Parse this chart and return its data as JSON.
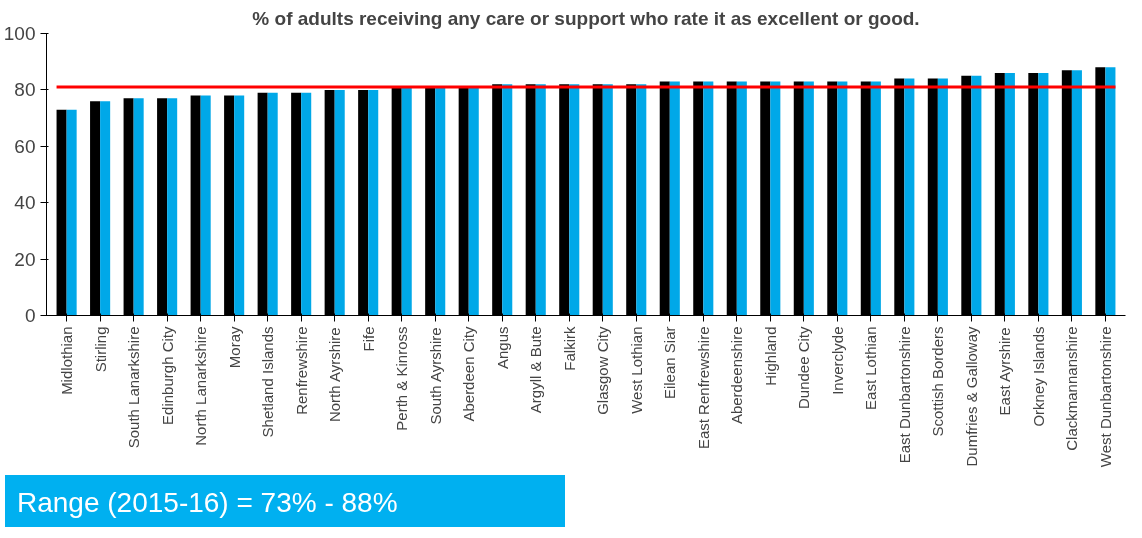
{
  "chart_data": {
    "type": "bar",
    "title": "% of adults receiving any care or support who rate it as excellent or good.",
    "categories": [
      "Midlothian",
      "Stirling",
      "South Lanarkshire",
      "Edinburgh City",
      "North Lanarkshire",
      "Moray",
      "Shetland Islands",
      "Renfrewshire",
      "North Ayrshire",
      "Fife",
      "Perth & Kinross",
      "South Ayrshire",
      "Aberdeen City",
      "Angus",
      "Argyll & Bute",
      "Falkirk",
      "Glasgow City",
      "West Lothian",
      "Eilean Siar",
      "East Renfrewshire",
      "Aberdeenshire",
      "Highland",
      "Dundee City",
      "Inverclyde",
      "East Lothian",
      "East Dunbartonshire",
      "Scottish Borders",
      "Dumfries & Galloway",
      "East Ayrshire",
      "Orkney Islands",
      "Clackmannanshire",
      "West Dunbartonshire"
    ],
    "series": [
      {
        "color": "#000000",
        "values": [
          73,
          76,
          77,
          77,
          78,
          78,
          79,
          79,
          80,
          80,
          81,
          81,
          81,
          82,
          82,
          82,
          82,
          82,
          83,
          83,
          83,
          83,
          83,
          83,
          83,
          84,
          84,
          85,
          86,
          86,
          87,
          88
        ]
      },
      {
        "color": "#00a8e8",
        "values": [
          73,
          76,
          77,
          77,
          78,
          78,
          79,
          79,
          80,
          80,
          81,
          81,
          81,
          82,
          82,
          82,
          82,
          82,
          83,
          83,
          83,
          83,
          83,
          83,
          83,
          84,
          84,
          85,
          86,
          86,
          87,
          88
        ]
      }
    ],
    "ylim": [
      0,
      100
    ],
    "yticks": [
      0,
      20,
      40,
      60,
      80,
      100
    ],
    "ref_lines": [
      {
        "axis": "y",
        "value": 81,
        "label": null,
        "color": "#ff0000"
      }
    ],
    "annotations": [
      "Range (2015-16) = 73% - 88%"
    ]
  }
}
